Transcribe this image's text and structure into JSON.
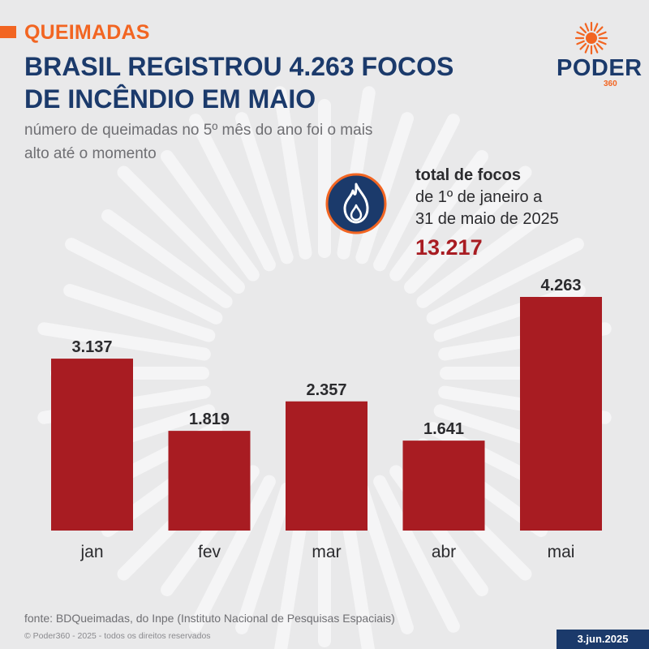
{
  "header": {
    "kicker": "QUEIMADAS",
    "headline_line1": "BRASIL REGISTROU 4.263 FOCOS",
    "headline_line2": "DE INCÊNDIO EM MAIO",
    "subtitle_line1": "número de queimadas no 5º mês do ano foi o mais",
    "subtitle_line2": "alto até o momento"
  },
  "logo": {
    "word": "PODER",
    "suffix": "360"
  },
  "callout": {
    "icon": "flame-icon",
    "title": "total de focos",
    "line1": "de 1º de janeiro a",
    "line2": "31 de maio de 2025",
    "value": "13.217"
  },
  "chart_data": {
    "type": "bar",
    "categories": [
      "jan",
      "fev",
      "mar",
      "abr",
      "mai"
    ],
    "values": [
      3137,
      1819,
      2357,
      1641,
      4263
    ],
    "value_labels": [
      "3.137",
      "1.819",
      "2.357",
      "1.641",
      "4.263"
    ],
    "ylim": [
      0,
      4263
    ],
    "grid": false,
    "bar_color": "#a81c22"
  },
  "footer": {
    "source": "fonte: BDQueimadas, do Inpe (Instituto Nacional de Pesquisas Espaciais)",
    "copyright": "© Poder360 - 2025 - todos os direitos reservados",
    "date": "3.jun.2025"
  },
  "colors": {
    "accent_orange": "#f26522",
    "navy": "#1b3a6b",
    "bar_red": "#a81c22",
    "background": "#e9e9ea"
  }
}
